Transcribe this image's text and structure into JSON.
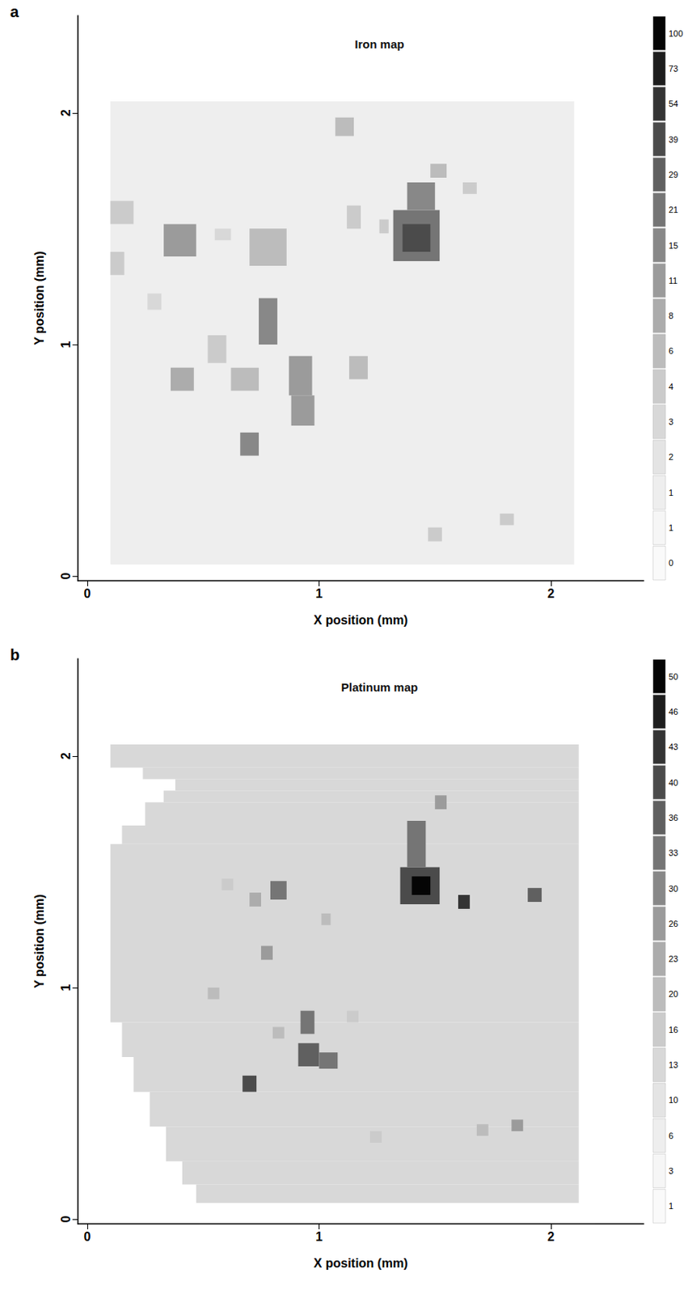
{
  "chart_data": [
    {
      "type": "heatmap",
      "panel": "a",
      "title": "Iron map",
      "x_label": "X position (mm)",
      "y_label": "Y position (mm)",
      "xlim": [
        -0.04,
        2.4
      ],
      "ylim": [
        -0.02,
        2.42
      ],
      "xticks": [
        0,
        1,
        2
      ],
      "yticks": [
        0,
        1,
        2
      ],
      "colorbar_ticks": [
        0,
        1,
        1,
        2,
        3,
        4,
        6,
        8,
        11,
        15,
        21,
        29,
        39,
        54,
        73,
        100
      ],
      "cells": [
        [
          0.1,
          2.1,
          0.05,
          2.05,
          1
        ],
        [
          1.32,
          1.52,
          1.36,
          1.58,
          21
        ],
        [
          1.36,
          1.48,
          1.4,
          1.52,
          39
        ],
        [
          1.38,
          1.5,
          1.58,
          1.7,
          15
        ],
        [
          0.33,
          0.47,
          1.38,
          1.52,
          11
        ],
        [
          0.7,
          0.86,
          1.34,
          1.5,
          6
        ],
        [
          0.74,
          0.82,
          1.0,
          1.2,
          15
        ],
        [
          0.87,
          0.97,
          0.78,
          0.95,
          11
        ],
        [
          0.88,
          0.98,
          0.65,
          0.78,
          11
        ],
        [
          0.62,
          0.74,
          0.8,
          0.9,
          6
        ],
        [
          0.52,
          0.6,
          0.92,
          1.04,
          4
        ],
        [
          0.36,
          0.46,
          0.8,
          0.9,
          8
        ],
        [
          0.66,
          0.74,
          0.52,
          0.62,
          15
        ],
        [
          0.1,
          0.2,
          1.52,
          1.62,
          4
        ],
        [
          0.1,
          0.16,
          1.3,
          1.4,
          4
        ],
        [
          1.13,
          1.21,
          0.85,
          0.95,
          6
        ],
        [
          1.12,
          1.18,
          1.5,
          1.6,
          4
        ],
        [
          1.07,
          1.15,
          1.9,
          1.98,
          6
        ],
        [
          1.48,
          1.55,
          1.72,
          1.78,
          6
        ],
        [
          1.62,
          1.68,
          1.65,
          1.7,
          4
        ],
        [
          1.47,
          1.53,
          0.15,
          0.21,
          4
        ],
        [
          1.78,
          1.84,
          0.22,
          0.27,
          4
        ],
        [
          0.26,
          0.32,
          1.15,
          1.22,
          3
        ],
        [
          0.55,
          0.62,
          1.45,
          1.5,
          3
        ],
        [
          1.26,
          1.3,
          1.48,
          1.54,
          4
        ]
      ]
    },
    {
      "type": "heatmap",
      "panel": "b",
      "title": "Platinum map",
      "x_label": "X position (mm)",
      "y_label": "Y position (mm)",
      "xlim": [
        -0.04,
        2.4
      ],
      "ylim": [
        -0.02,
        2.42
      ],
      "xticks": [
        0,
        1,
        2
      ],
      "yticks": [
        0,
        1,
        2
      ],
      "colorbar_ticks": [
        1,
        3,
        6,
        10,
        13,
        16,
        20,
        23,
        26,
        30,
        33,
        36,
        40,
        43,
        46,
        50
      ],
      "cells": [
        [
          0.1,
          2.12,
          1.95,
          2.05,
          13
        ],
        [
          0.24,
          2.12,
          1.9,
          1.95,
          13
        ],
        [
          0.38,
          2.12,
          1.85,
          1.9,
          13
        ],
        [
          0.33,
          2.12,
          1.8,
          1.85,
          13
        ],
        [
          0.25,
          2.12,
          1.7,
          1.8,
          13
        ],
        [
          0.15,
          2.12,
          1.62,
          1.7,
          13
        ],
        [
          0.1,
          2.12,
          0.85,
          1.62,
          13
        ],
        [
          0.15,
          2.12,
          0.7,
          0.85,
          13
        ],
        [
          0.2,
          2.12,
          0.55,
          0.7,
          13
        ],
        [
          0.27,
          2.12,
          0.4,
          0.55,
          13
        ],
        [
          0.34,
          2.12,
          0.25,
          0.4,
          13
        ],
        [
          0.41,
          2.12,
          0.15,
          0.25,
          13
        ],
        [
          0.47,
          2.12,
          0.07,
          0.15,
          13
        ],
        [
          1.35,
          1.52,
          1.36,
          1.52,
          40
        ],
        [
          1.4,
          1.48,
          1.4,
          1.48,
          50
        ],
        [
          1.38,
          1.46,
          1.52,
          1.72,
          33
        ],
        [
          1.6,
          1.65,
          1.34,
          1.4,
          43
        ],
        [
          1.9,
          1.96,
          1.37,
          1.43,
          36
        ],
        [
          1.5,
          1.55,
          1.77,
          1.83,
          26
        ],
        [
          0.79,
          0.86,
          1.38,
          1.46,
          33
        ],
        [
          0.7,
          0.75,
          1.35,
          1.41,
          23
        ],
        [
          0.75,
          0.8,
          1.12,
          1.18,
          26
        ],
        [
          1.01,
          1.05,
          1.27,
          1.32,
          20
        ],
        [
          0.52,
          0.57,
          0.95,
          1.0,
          20
        ],
        [
          0.92,
          0.98,
          0.8,
          0.9,
          33
        ],
        [
          0.91,
          1.0,
          0.66,
          0.76,
          36
        ],
        [
          1.0,
          1.08,
          0.65,
          0.72,
          33
        ],
        [
          0.67,
          0.73,
          0.55,
          0.62,
          40
        ],
        [
          0.8,
          0.85,
          0.78,
          0.83,
          20
        ],
        [
          1.83,
          1.88,
          0.38,
          0.43,
          26
        ],
        [
          1.68,
          1.73,
          0.36,
          0.41,
          20
        ],
        [
          1.22,
          1.27,
          0.33,
          0.38,
          16
        ],
        [
          0.58,
          0.63,
          1.42,
          1.47,
          16
        ],
        [
          1.12,
          1.17,
          0.85,
          0.9,
          16
        ]
      ]
    }
  ]
}
